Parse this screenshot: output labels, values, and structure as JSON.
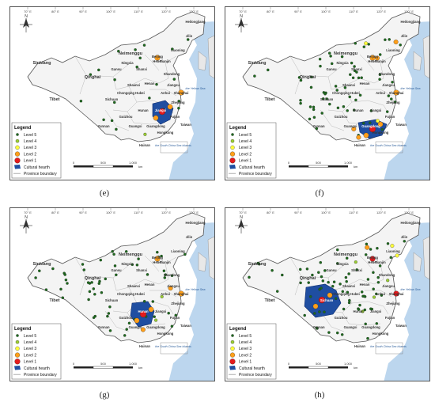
{
  "panels": [
    {
      "letter": "(e)",
      "hearth": "Jiangxi",
      "hearth_label": "Jiangxi"
    },
    {
      "letter": "(f)",
      "hearth": "Guangdong",
      "hearth_label": "Guangdong"
    },
    {
      "letter": "(g)",
      "hearth": "Hunan",
      "hearth_label": "Hunan"
    },
    {
      "letter": "(h)",
      "hearth": "Sichuan",
      "hearth_label": "Sichuan"
    }
  ],
  "map": {
    "provinces": [
      "Heilongjiang",
      "Jilin",
      "Liaoning",
      "Neimenggu",
      "Hebei",
      "Beijing",
      "Tianjin",
      "Shanxi",
      "Shandong",
      "Henan",
      "Jiangsu",
      "Shanghai",
      "Anhui",
      "Hubei",
      "Zhejiang",
      "Jiangxi",
      "Hunan",
      "Fujian",
      "Guangdong",
      "Guangxi",
      "Hainan",
      "Guizhou",
      "Yunnan",
      "Sichuan",
      "Chongqing",
      "Shaanxi",
      "Gansu",
      "Ningxia",
      "Qinghai",
      "Tibet",
      "Sinkiang",
      "Taiwan",
      "Hongkong"
    ],
    "sea_labels": [
      "the Yellow Sea",
      "the South China Sea Islands"
    ],
    "longitudes": [
      "70° E",
      "80° E",
      "90° E",
      "100° E",
      "110° E",
      "120° E",
      "130° E"
    ],
    "scale": [
      "0",
      "500",
      "1,000"
    ],
    "scale_unit": "km",
    "north": "N"
  },
  "legend": {
    "title": "Legend",
    "items": [
      {
        "label": "Level 5",
        "color": "#1e6b1e"
      },
      {
        "label": "Level 4",
        "color": "#9acd32"
      },
      {
        "label": "Level 3",
        "color": "#ffff3c"
      },
      {
        "label": "Level 2",
        "color": "#ff9f1a"
      },
      {
        "label": "Level 1",
        "color": "#e31a1c"
      },
      {
        "label": "Cultural hearth",
        "color": "#1f4ea1"
      },
      {
        "label": "Province boundary",
        "color": "#999999"
      }
    ]
  },
  "colors": {
    "land": "#f4f4f4",
    "sea": "#bcd6ee",
    "hearth": "#1f4ea1"
  }
}
